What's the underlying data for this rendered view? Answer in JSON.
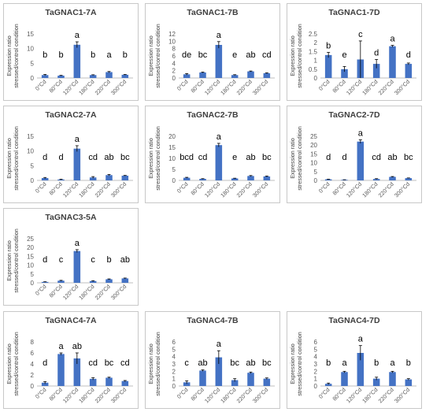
{
  "chart_data": [
    {
      "type": "bar",
      "title": "TaGNAC1-7A",
      "categories": [
        "0°Cd",
        "80°Cd",
        "120°Cd",
        "180°Cd",
        "220°Cd",
        "300°Cd"
      ],
      "values": [
        1.0,
        0.8,
        11.3,
        1.0,
        2.0,
        1.1
      ],
      "errors": [
        0.2,
        0.1,
        1.0,
        0.1,
        0.2,
        0.1
      ],
      "letters": [
        "b",
        "b",
        "a",
        "b",
        "a",
        "b"
      ],
      "ylabel": [
        "Expression ratio",
        "stressed/control condition"
      ],
      "ylim": [
        0,
        15
      ],
      "yticks": [
        0,
        5,
        10,
        15
      ],
      "color": "#4472c4"
    },
    {
      "type": "bar",
      "title": "TaGNAC1-7B",
      "categories": [
        "0°Cd",
        "80°Cd",
        "120°Cd",
        "180°Cd",
        "220°Cd",
        "300°Cd"
      ],
      "values": [
        1.0,
        1.5,
        9.0,
        0.8,
        1.8,
        1.3
      ],
      "errors": [
        0.2,
        0.1,
        0.9,
        0.1,
        0.1,
        0.1
      ],
      "letters": [
        "de",
        "bc",
        "a",
        "e",
        "ab",
        "cd"
      ],
      "ylabel": [
        "Expression ratio",
        "stressed/control condition"
      ],
      "ylim": [
        0,
        12
      ],
      "yticks": [
        0,
        2,
        4,
        6,
        8,
        10,
        12
      ],
      "color": "#4472c4"
    },
    {
      "type": "bar",
      "title": "TaGNAC1-7D",
      "categories": [
        "0°Cd",
        "80°Cd",
        "120°Cd",
        "180°Cd",
        "220°Cd",
        "300°Cd"
      ],
      "values": [
        1.3,
        0.5,
        1.05,
        0.8,
        1.8,
        0.8
      ],
      "errors": [
        0.15,
        0.15,
        1.05,
        0.25,
        0.05,
        0.05
      ],
      "letters": [
        "b",
        "e",
        "c",
        "d",
        "a",
        "d"
      ],
      "ylabel": [
        "Expression ratio",
        "stressed/control condition"
      ],
      "ylim": [
        0,
        2.5
      ],
      "yticks": [
        0,
        0.5,
        1,
        1.5,
        2,
        2.5
      ],
      "color": "#4472c4"
    },
    {
      "type": "bar",
      "title": "TaGNAC2-7A",
      "categories": [
        "0°Cd",
        "80°Cd",
        "120°Cd",
        "180°Cd",
        "220°Cd",
        "300°Cd"
      ],
      "values": [
        0.8,
        0.3,
        10.8,
        1.0,
        1.8,
        1.6
      ],
      "errors": [
        0.2,
        0.1,
        1.0,
        0.3,
        0.2,
        0.1
      ],
      "letters": [
        "d",
        "d",
        "a",
        "cd",
        "ab",
        "bc"
      ],
      "ylabel": [
        "Expression ratio",
        "stressed/control condition"
      ],
      "ylim": [
        0,
        15
      ],
      "yticks": [
        0,
        5,
        10,
        15
      ],
      "color": "#4472c4"
    },
    {
      "type": "bar",
      "title": "TaGNAC2-7B",
      "categories": [
        "0°Cd",
        "80°Cd",
        "120°Cd",
        "180°Cd",
        "220°Cd",
        "300°Cd"
      ],
      "values": [
        1.2,
        0.7,
        16.0,
        0.9,
        2.0,
        1.8
      ],
      "errors": [
        0.2,
        0.1,
        0.8,
        0.1,
        0.2,
        0.2
      ],
      "letters": [
        "bcd",
        "cd",
        "a",
        "e",
        "ab",
        "bc"
      ],
      "ylabel": [
        "Expression ratio",
        "stressed/control condition"
      ],
      "ylim": [
        0,
        20
      ],
      "yticks": [
        0,
        5,
        10,
        15,
        20
      ],
      "color": "#4472c4"
    },
    {
      "type": "bar",
      "title": "TaGNAC2-7D",
      "categories": [
        "0°Cd",
        "80°Cd",
        "120°Cd",
        "180°Cd",
        "220°Cd",
        "300°Cd"
      ],
      "values": [
        0.6,
        0.3,
        22.0,
        0.8,
        2.0,
        1.3
      ],
      "errors": [
        0.1,
        0.1,
        1.0,
        0.2,
        0.2,
        0.1
      ],
      "letters": [
        "d",
        "d",
        "a",
        "cd",
        "ab",
        "bc"
      ],
      "ylabel": [
        "Expression ratio",
        "stressed/control condition"
      ],
      "ylim": [
        0,
        25
      ],
      "yticks": [
        0,
        5,
        10,
        15,
        20,
        25
      ],
      "color": "#4472c4"
    },
    {
      "type": "bar",
      "title": "TaGNAC3-5A",
      "categories": [
        "0°Cd",
        "80°Cd",
        "120°Cd",
        "180°Cd",
        "220°Cd",
        "300°Cd"
      ],
      "values": [
        0.5,
        1.2,
        18.0,
        1.0,
        2.0,
        2.5
      ],
      "errors": [
        0.1,
        0.2,
        0.8,
        0.2,
        0.2,
        0.2
      ],
      "letters": [
        "d",
        "c",
        "a",
        "c",
        "b",
        "ab"
      ],
      "ylabel": [
        "Expression ratio",
        "stressed/control condition"
      ],
      "ylim": [
        0,
        25
      ],
      "yticks": [
        0,
        5,
        10,
        15,
        20,
        25
      ],
      "color": "#4472c4"
    },
    {
      "type": "bar",
      "title": "TaGNAC4-7A",
      "categories": [
        "0°Cd",
        "80°Cd",
        "120°Cd",
        "180°Cd",
        "220°Cd",
        "300°Cd"
      ],
      "values": [
        0.6,
        5.8,
        5.0,
        1.3,
        1.5,
        0.9
      ],
      "errors": [
        0.2,
        0.2,
        1.0,
        0.2,
        0.1,
        0.1
      ],
      "letters": [
        "d",
        "a",
        "ab",
        "cd",
        "bc",
        "cd"
      ],
      "ylabel": [
        "Expression ratio",
        "stressed/control condition"
      ],
      "ylim": [
        0,
        8
      ],
      "yticks": [
        0,
        2,
        4,
        6,
        8
      ],
      "color": "#4472c4"
    },
    {
      "type": "bar",
      "title": "TaGNAC4-7B",
      "categories": [
        "0°Cd",
        "80°Cd",
        "120°Cd",
        "180°Cd",
        "220°Cd",
        "300°Cd"
      ],
      "values": [
        0.5,
        2.1,
        3.9,
        0.8,
        1.8,
        1.0
      ],
      "errors": [
        0.2,
        0.1,
        0.9,
        0.2,
        0.1,
        0.1
      ],
      "letters": [
        "c",
        "ab",
        "a",
        "bc",
        "ab",
        "bc"
      ],
      "ylabel": [
        "Expression ratio",
        "stressed/control condition"
      ],
      "ylim": [
        0,
        6
      ],
      "yticks": [
        0,
        1,
        2,
        3,
        4,
        5,
        6
      ],
      "color": "#4472c4"
    },
    {
      "type": "bar",
      "title": "TaGNAC4-7D",
      "categories": [
        "0°Cd",
        "80°Cd",
        "120°Cd",
        "180°Cd",
        "220°Cd",
        "300°Cd"
      ],
      "values": [
        0.3,
        1.9,
        4.5,
        1.0,
        1.9,
        0.9
      ],
      "errors": [
        0.1,
        0.1,
        1.0,
        0.2,
        0.1,
        0.1
      ],
      "letters": [
        "b",
        "a",
        "a",
        "b",
        "a",
        "b"
      ],
      "ylabel": [
        "Expression ratio",
        "stressed/control condition"
      ],
      "ylim": [
        0,
        6
      ],
      "yticks": [
        0,
        1,
        2,
        3,
        4,
        5,
        6
      ],
      "color": "#4472c4"
    }
  ]
}
